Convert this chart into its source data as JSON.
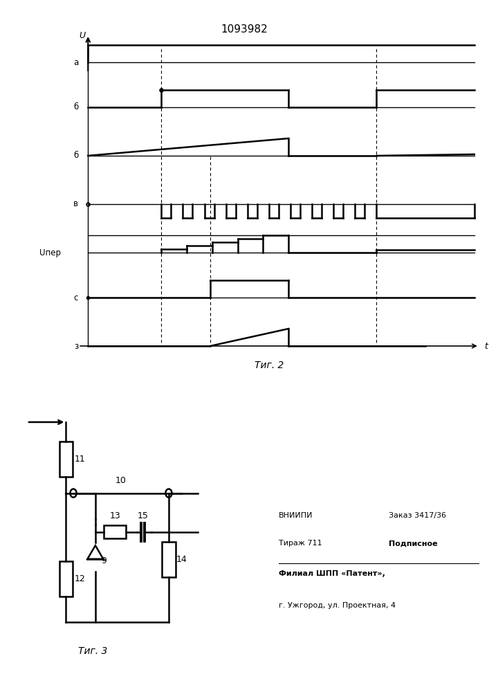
{
  "title": "1093982",
  "fig2_label": "Τиг. 2",
  "fig3_label": "Τиг. 3",
  "background_color": "#ffffff",
  "line_color": "#000000",
  "patent_info": {
    "line1_left": "ВНИИПИ",
    "line1_right": "Заказ 3417/36",
    "line2_left": "Тираж 711",
    "line2_right": "Подписное",
    "line3": "Филиал ШПП «Патент»,",
    "line4": "г. Ужгород, ул. Проектная, 4"
  }
}
